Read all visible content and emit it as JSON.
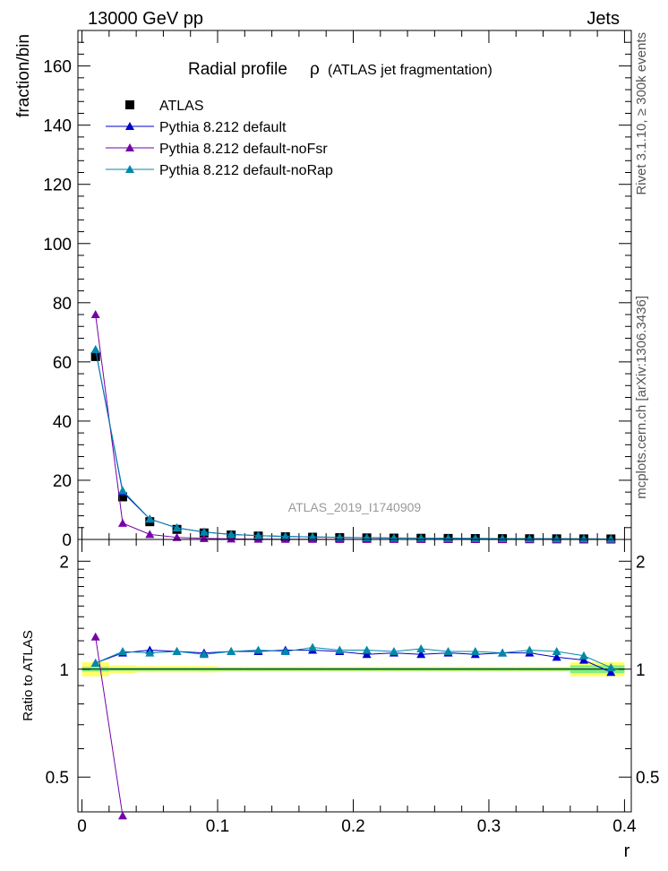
{
  "header": {
    "left": "13000 GeV pp",
    "right": "Jets"
  },
  "side_text": {
    "top": "Rivet 3.1.10, ≥ 300k events",
    "bottom": "mcplots.cern.ch [arXiv:1306.3436]"
  },
  "chart_data": [
    {
      "type": "scatter",
      "title": "Radial profile",
      "title_symbol": "ρ",
      "title_suffix": "(ATLAS jet fragmentation)",
      "watermark": "ATLAS_2019_I1740909",
      "ylabel": "fraction/bin",
      "xlim": [
        -0.003,
        0.405
      ],
      "ylim": [
        0,
        172
      ],
      "yticks": [
        0,
        20,
        40,
        60,
        80,
        100,
        120,
        140,
        160
      ],
      "x": [
        0.01,
        0.03,
        0.05,
        0.07,
        0.09,
        0.11,
        0.13,
        0.15,
        0.17,
        0.19,
        0.21,
        0.23,
        0.25,
        0.27,
        0.29,
        0.31,
        0.33,
        0.35,
        0.37,
        0.39
      ],
      "series": [
        {
          "name": "ATLAS",
          "color": "#000000",
          "marker": "square",
          "values": [
            61.8,
            14.4,
            6.0,
            3.4,
            2.2,
            1.5,
            1.15,
            0.9,
            0.75,
            0.62,
            0.52,
            0.45,
            0.39,
            0.34,
            0.3,
            0.27,
            0.24,
            0.21,
            0.19,
            0.17
          ]
        },
        {
          "name": "Pythia 8.212 default",
          "color": "#0000cc",
          "marker": "triangle",
          "values": [
            64.0,
            16.0,
            6.9,
            3.9,
            2.5,
            1.7,
            1.3,
            1.03,
            0.85,
            0.7,
            0.57,
            0.5,
            0.43,
            0.38,
            0.33,
            0.3,
            0.27,
            0.23,
            0.2,
            0.165
          ]
        },
        {
          "name": "Pythia 8.212 default-noFsr",
          "color": "#7700aa",
          "marker": "triangle",
          "values": [
            76.0,
            5.5,
            1.7,
            0.7,
            0.35,
            0.2,
            0.13,
            0.09,
            0.06,
            0.045,
            0.035,
            0.028,
            0.022,
            0.018,
            0.015,
            0.012,
            0.01,
            0.008,
            0.007,
            0.006
          ]
        },
        {
          "name": "Pythia 8.212 default-noRap",
          "color": "#0088aa",
          "marker": "triangle",
          "values": [
            64.2,
            16.5,
            6.9,
            3.9,
            2.5,
            1.7,
            1.3,
            1.03,
            0.86,
            0.71,
            0.59,
            0.51,
            0.45,
            0.39,
            0.34,
            0.3,
            0.27,
            0.24,
            0.21,
            0.175
          ]
        }
      ]
    },
    {
      "type": "scatter",
      "ylabel": "Ratio to ATLAS",
      "xlabel": "r",
      "xlim": [
        -0.003,
        0.405
      ],
      "ylim": [
        0.4,
        2.3
      ],
      "log_y": true,
      "xticks": [
        0,
        0.1,
        0.2,
        0.3,
        0.4
      ],
      "xtick_labels": [
        "0",
        "0.1",
        "0.2",
        "0.3",
        "0.4"
      ],
      "yticks": [
        0.5,
        1,
        2
      ],
      "ytick_labels": [
        "0.5",
        "1",
        "2"
      ],
      "x": [
        0.01,
        0.03,
        0.05,
        0.07,
        0.09,
        0.11,
        0.13,
        0.15,
        0.17,
        0.19,
        0.21,
        0.23,
        0.25,
        0.27,
        0.29,
        0.31,
        0.33,
        0.35,
        0.37,
        0.39
      ],
      "band_inner": {
        "color": "#7ff07f",
        "lo": [
          0.985,
          0.99,
          0.99,
          0.99,
          0.99,
          0.99,
          0.99,
          0.99,
          0.99,
          0.99,
          0.99,
          0.99,
          0.99,
          0.99,
          0.99,
          0.99,
          0.99,
          0.99,
          0.975,
          0.975
        ],
        "hi": [
          1.015,
          1.01,
          1.01,
          1.01,
          1.01,
          1.01,
          1.01,
          1.01,
          1.01,
          1.01,
          1.01,
          1.01,
          1.01,
          1.01,
          1.01,
          1.01,
          1.01,
          1.01,
          1.025,
          1.025
        ]
      },
      "band_outer": {
        "color": "#ffff66",
        "lo": [
          0.955,
          0.975,
          0.98,
          0.98,
          0.98,
          0.985,
          0.985,
          0.985,
          0.985,
          0.985,
          0.985,
          0.985,
          0.985,
          0.985,
          0.985,
          0.985,
          0.985,
          0.985,
          0.955,
          0.955
        ],
        "hi": [
          1.045,
          1.025,
          1.02,
          1.02,
          1.02,
          1.015,
          1.015,
          1.015,
          1.015,
          1.015,
          1.015,
          1.015,
          1.015,
          1.015,
          1.015,
          1.015,
          1.015,
          1.015,
          1.045,
          1.045
        ]
      },
      "series": [
        {
          "name": "Pythia 8.212 default",
          "color": "#0000cc",
          "values": [
            1.04,
            1.11,
            1.13,
            1.12,
            1.11,
            1.12,
            1.12,
            1.13,
            1.13,
            1.12,
            1.1,
            1.11,
            1.1,
            1.11,
            1.1,
            1.11,
            1.11,
            1.08,
            1.06,
            0.98
          ]
        },
        {
          "name": "Pythia 8.212 default-noFsr",
          "color": "#7700aa",
          "values": [
            1.23,
            0.39
          ]
        },
        {
          "name": "Pythia 8.212 default-noRap",
          "color": "#0088aa",
          "values": [
            1.04,
            1.12,
            1.11,
            1.12,
            1.1,
            1.12,
            1.13,
            1.12,
            1.15,
            1.13,
            1.13,
            1.12,
            1.14,
            1.12,
            1.12,
            1.11,
            1.13,
            1.12,
            1.09,
            1.01
          ]
        }
      ]
    }
  ]
}
